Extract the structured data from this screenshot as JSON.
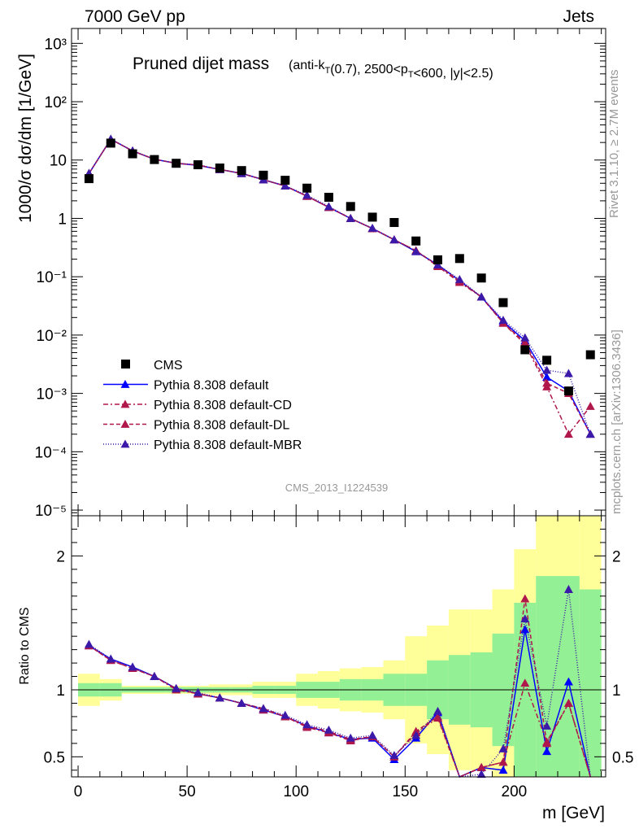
{
  "header": {
    "left": "7000 GeV pp",
    "right": "Jets"
  },
  "side": {
    "rivet": "Rivet 3.1.10, ≥ 2.7M events",
    "mcplots": "mcplots.cern.ch [arXiv:1306.3436]"
  },
  "chart_data": [
    {
      "type": "scatter",
      "panel": "main",
      "title_main": "Pruned dijet mass",
      "title_sub": "(anti-k_T(0.7), 2500<p_T<600, |y|<2.5)",
      "watermark": "CMS_2013_I1224539",
      "ylabel": "1000/σ dσ/dm [1/GeV]",
      "yscale": "log",
      "ylim": [
        8e-06,
        1800
      ],
      "xlim": [
        -3,
        242
      ],
      "y_tick_labels": [
        "10⁻⁵",
        "10⁻⁴",
        "10⁻³",
        "10⁻²",
        "10⁻¹",
        "1",
        "10",
        "10²",
        "10³"
      ],
      "x": [
        5,
        15,
        25,
        35,
        45,
        55,
        65,
        75,
        85,
        95,
        105,
        115,
        125,
        135,
        145,
        155,
        165,
        175,
        185,
        195,
        205,
        215,
        225,
        235
      ],
      "legend": [
        {
          "label": "CMS"
        },
        {
          "label": "Pythia 8.308 default"
        },
        {
          "label": "Pythia 8.308 default-CD"
        },
        {
          "label": "Pythia 8.308 default-DL"
        },
        {
          "label": "Pythia 8.308 default-MBR"
        }
      ],
      "series": [
        {
          "name": "CMS",
          "color": "#000000",
          "marker": "square",
          "values": [
            4.8,
            19.5,
            12.8,
            10.2,
            8.8,
            8.3,
            7.3,
            6.6,
            5.5,
            4.5,
            3.3,
            2.3,
            1.6,
            1.05,
            0.85,
            0.41,
            0.195,
            0.205,
            0.095,
            0.036,
            0.0056,
            0.0037,
            0.0011,
            0.0046
          ]
        },
        {
          "name": "Pythia 8.308 default",
          "color": "#0000ff",
          "dash": "",
          "values": [
            5.9,
            22.8,
            14.3,
            10.3,
            8.8,
            8.1,
            6.9,
            5.9,
            4.6,
            3.6,
            2.4,
            1.55,
            1.0,
            0.67,
            0.43,
            0.27,
            0.16,
            0.085,
            0.045,
            0.017,
            0.008,
            0.0019,
            0.0011,
            0.0002
          ]
        },
        {
          "name": "Pythia 8.308 default-CD",
          "color": "#b0174a",
          "dash": "6,3,2,3",
          "values": [
            5.9,
            22.7,
            14.4,
            10.3,
            8.8,
            8.2,
            6.9,
            5.9,
            4.6,
            3.6,
            2.4,
            1.55,
            1.0,
            0.67,
            0.43,
            0.28,
            0.15,
            0.08,
            0.045,
            0.016,
            0.007,
            0.0013,
            0.0002,
            0.0006
          ]
        },
        {
          "name": "Pythia 8.308 default-DL",
          "color": "#b0174a",
          "dash": "5,3",
          "values": [
            5.9,
            22.6,
            14.3,
            10.3,
            8.8,
            8.2,
            6.9,
            5.9,
            4.6,
            3.6,
            2.4,
            1.55,
            1.0,
            0.67,
            0.43,
            0.28,
            0.155,
            0.085,
            0.045,
            0.016,
            0.0075,
            0.0015,
            0.001,
            0.0002
          ]
        },
        {
          "name": "Pythia 8.308 default-MBR",
          "color": "#3b1aaa",
          "dash": "1,2",
          "values": [
            5.9,
            22.9,
            14.4,
            10.3,
            8.9,
            8.2,
            6.9,
            5.9,
            4.6,
            3.6,
            2.5,
            1.6,
            1.0,
            0.68,
            0.43,
            0.27,
            0.16,
            0.09,
            0.045,
            0.018,
            0.009,
            0.0025,
            0.0022,
            0.0002
          ]
        }
      ]
    },
    {
      "type": "line",
      "panel": "ratio",
      "ylabel": "Ratio to CMS",
      "xlabel": "m [GeV]",
      "ylim": [
        0.35,
        2.3
      ],
      "xlim": [
        -3,
        242
      ],
      "x_ticks": [
        0,
        50,
        100,
        150,
        200
      ],
      "y_ticks": [
        0.5,
        1,
        2
      ],
      "bin_edges": [
        0,
        10,
        20,
        30,
        40,
        50,
        60,
        70,
        80,
        90,
        100,
        110,
        120,
        130,
        140,
        150,
        160,
        170,
        180,
        190,
        200,
        210,
        220,
        230,
        240
      ],
      "band_inner": {
        "color": "#94f094",
        "lo": [
          0.95,
          0.95,
          0.98,
          0.98,
          0.98,
          0.98,
          0.98,
          0.98,
          0.97,
          0.97,
          0.94,
          0.94,
          0.92,
          0.92,
          0.88,
          0.88,
          0.78,
          0.74,
          0.72,
          0.58,
          0.35,
          0.35,
          0.35,
          0.35
        ],
        "hi": [
          1.05,
          1.05,
          1.02,
          1.02,
          1.02,
          1.02,
          1.02,
          1.02,
          1.03,
          1.03,
          1.06,
          1.06,
          1.08,
          1.08,
          1.12,
          1.12,
          1.22,
          1.26,
          1.28,
          1.42,
          1.65,
          1.85,
          1.85,
          1.75
        ]
      },
      "band_outer": {
        "color": "#ffff99",
        "lo": [
          0.88,
          0.92,
          0.97,
          0.97,
          0.97,
          0.97,
          0.96,
          0.96,
          0.94,
          0.94,
          0.88,
          0.86,
          0.84,
          0.83,
          0.78,
          0.6,
          0.52,
          0.4,
          0.4,
          0.35,
          0.35,
          0.35,
          0.35,
          0.35
        ],
        "hi": [
          1.12,
          1.08,
          1.03,
          1.03,
          1.03,
          1.03,
          1.04,
          1.04,
          1.06,
          1.06,
          1.12,
          1.14,
          1.16,
          1.17,
          1.22,
          1.4,
          1.48,
          1.6,
          1.6,
          1.75,
          2.05,
          2.3,
          2.3,
          2.3
        ]
      },
      "x": [
        5,
        15,
        25,
        35,
        45,
        55,
        65,
        75,
        85,
        95,
        105,
        115,
        125,
        135,
        145,
        155,
        165,
        175,
        185,
        195,
        205,
        215,
        225,
        235
      ],
      "series": [
        {
          "name": "Pythia 8.308 default",
          "color": "#0000ff",
          "dash": "",
          "values": [
            1.33,
            1.23,
            1.17,
            1.1,
            1.01,
            0.97,
            0.94,
            0.9,
            0.85,
            0.8,
            0.73,
            0.68,
            0.63,
            0.64,
            0.48,
            0.64,
            0.83,
            0.32,
            0.42,
            0.4,
            1.45,
            0.54,
            1.06,
            0.15
          ]
        },
        {
          "name": "Pythia 8.308 default-CD",
          "color": "#b0174a",
          "dash": "6,3,2,3",
          "values": [
            1.33,
            1.22,
            1.16,
            1.1,
            1.0,
            0.97,
            0.94,
            0.9,
            0.85,
            0.8,
            0.72,
            0.68,
            0.62,
            0.65,
            0.5,
            0.68,
            0.79,
            0.2,
            0.42,
            0.46,
            1.05,
            0.61,
            0.9,
            0.15
          ]
        },
        {
          "name": "Pythia 8.308 default-DL",
          "color": "#b0174a",
          "dash": "5,3",
          "values": [
            1.33,
            1.22,
            1.16,
            1.1,
            1.01,
            0.97,
            0.94,
            0.9,
            0.86,
            0.8,
            0.73,
            0.69,
            0.63,
            0.65,
            0.5,
            0.69,
            0.8,
            0.2,
            0.42,
            0.46,
            1.68,
            0.6,
            0.9,
            0.15
          ]
        },
        {
          "name": "Pythia 8.308 default-MBR",
          "color": "#3b1aaa",
          "dash": "1,2",
          "values": [
            1.34,
            1.23,
            1.17,
            1.1,
            1.01,
            0.98,
            0.94,
            0.9,
            0.86,
            0.81,
            0.74,
            0.7,
            0.64,
            0.66,
            0.51,
            0.66,
            0.84,
            0.34,
            0.37,
            0.56,
            1.53,
            0.73,
            1.75,
            0.2
          ]
        }
      ]
    }
  ]
}
